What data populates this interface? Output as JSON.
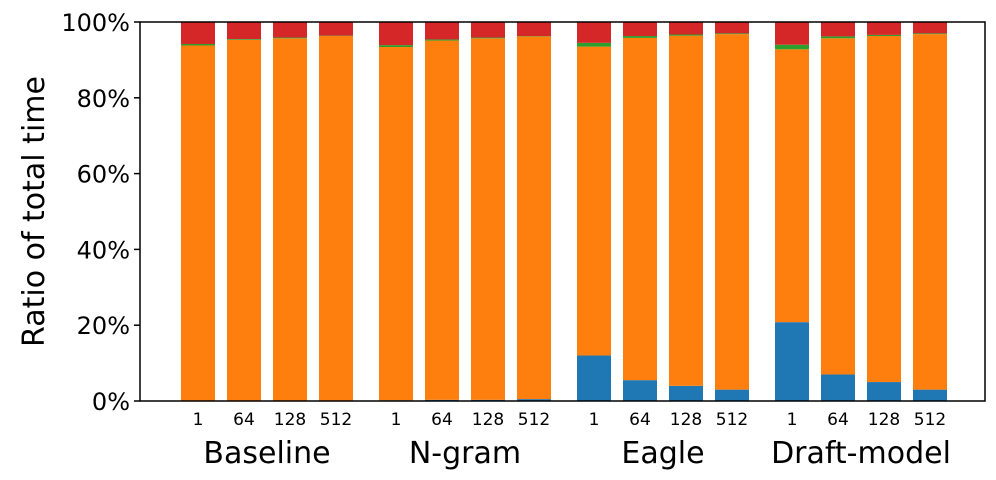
{
  "chart_data": {
    "type": "bar",
    "stacked": true,
    "normalized": true,
    "ylabel": "Ratio of total time",
    "ylim": [
      0,
      100
    ],
    "yticks": [
      "0%",
      "20%",
      "40%",
      "60%",
      "80%",
      "100%"
    ],
    "groups": [
      {
        "name": "Baseline",
        "categories": [
          "1",
          "64",
          "128",
          "512"
        ]
      },
      {
        "name": "N-gram",
        "categories": [
          "1",
          "64",
          "128",
          "512"
        ]
      },
      {
        "name": "Eagle",
        "categories": [
          "1",
          "64",
          "128",
          "512"
        ]
      },
      {
        "name": "Draft-model",
        "categories": [
          "1",
          "64",
          "128",
          "512"
        ]
      }
    ],
    "colors": [
      "#1f77b4",
      "#ff7f0e",
      "#2ca02c",
      "#d62728"
    ],
    "series": [
      {
        "values": [
          0.0,
          0.0,
          0.0,
          0.0,
          0.2,
          0.3,
          0.3,
          0.5,
          12.0,
          5.5,
          4.0,
          3.0,
          20.8,
          7.0,
          5.0,
          3.0
        ]
      },
      {
        "values": [
          93.8,
          95.3,
          95.7,
          96.3,
          93.2,
          94.8,
          95.4,
          95.7,
          81.5,
          90.3,
          92.4,
          93.8,
          72.0,
          88.7,
          91.3,
          93.8
        ]
      },
      {
        "values": [
          0.4,
          0.2,
          0.2,
          0.1,
          0.5,
          0.3,
          0.2,
          0.1,
          1.0,
          0.5,
          0.3,
          0.2,
          1.2,
          0.5,
          0.3,
          0.2
        ]
      },
      {
        "values": [
          5.8,
          4.5,
          4.1,
          3.6,
          6.1,
          4.6,
          4.1,
          3.7,
          5.5,
          3.7,
          3.3,
          3.0,
          6.0,
          3.8,
          3.4,
          3.0
        ]
      }
    ]
  }
}
